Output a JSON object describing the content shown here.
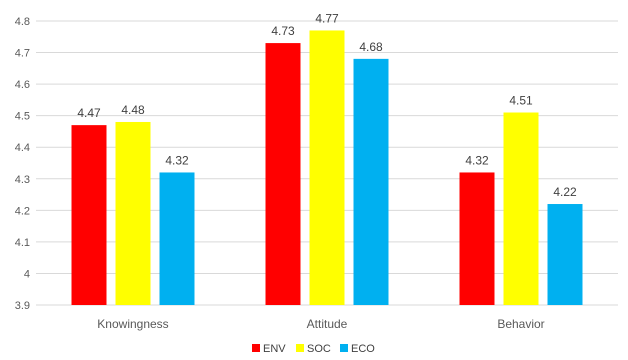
{
  "chart_data": {
    "type": "bar",
    "categories": [
      "Knowingness",
      "Attitude",
      "Behavior"
    ],
    "series": [
      {
        "name": "ENV",
        "color": "#ff0000",
        "values": [
          4.47,
          4.73,
          4.32
        ]
      },
      {
        "name": "SOC",
        "color": "#ffff00",
        "values": [
          4.48,
          4.77,
          4.51
        ]
      },
      {
        "name": "ECO",
        "color": "#00b0f0",
        "values": [
          4.32,
          4.68,
          4.22
        ]
      }
    ],
    "ylim": [
      3.9,
      4.8
    ],
    "yticks": [
      "3.9",
      "4",
      "4.1",
      "4.2",
      "4.3",
      "4.4",
      "4.5",
      "4.6",
      "4.7",
      "4.8"
    ],
    "grid": true,
    "legend_position": "bottom",
    "title": "",
    "xlabel": "",
    "ylabel": ""
  }
}
